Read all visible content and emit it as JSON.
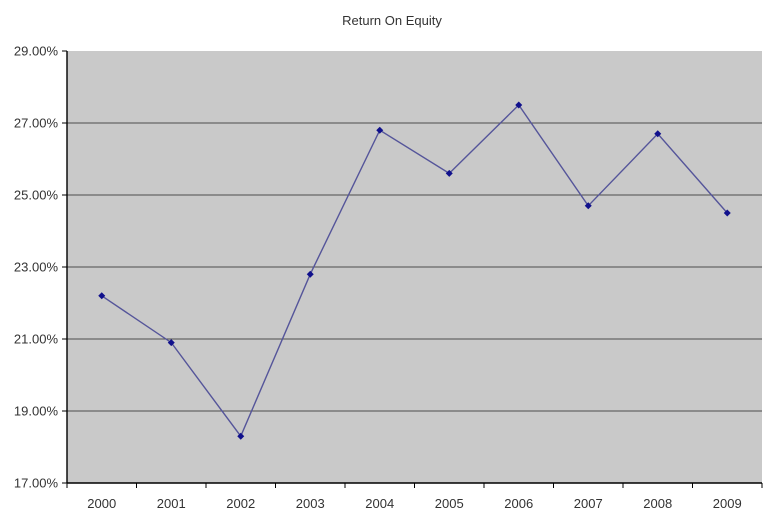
{
  "title": "Return On Equity",
  "colors": {
    "canvas_bg": "#ffffff",
    "plot_bg": "#c9c9c9",
    "gridline": "#4d4d4d",
    "axis": "#000000",
    "series_line": "#55559a",
    "marker_fill": "#10108c",
    "text": "#333333"
  },
  "chart_data": {
    "type": "line",
    "title": "Return On Equity",
    "categories": [
      "2000",
      "2001",
      "2002",
      "2003",
      "2004",
      "2005",
      "2006",
      "2007",
      "2008",
      "2009"
    ],
    "series": [
      {
        "name": "Return On Equity",
        "values": [
          22.2,
          20.9,
          18.3,
          22.8,
          26.8,
          25.6,
          27.5,
          24.7,
          26.7,
          24.5
        ]
      }
    ],
    "xlabel": "",
    "ylabel": "",
    "ylim": [
      17,
      29
    ],
    "ytick_step": 2,
    "ytick_labels": [
      "29.00%",
      "27.00%",
      "25.00%",
      "23.00%",
      "21.00%",
      "19.00%",
      "17.00%"
    ],
    "grid": true,
    "legend_position": "none",
    "marker_shape": "diamond"
  }
}
